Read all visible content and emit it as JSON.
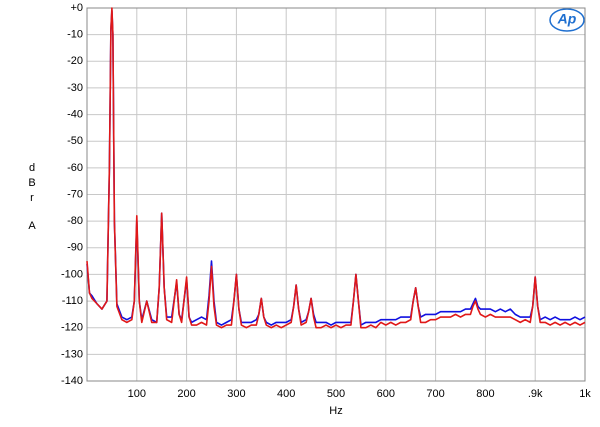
{
  "chart_data": {
    "type": "line",
    "logo": "Ap",
    "xlabel": "Hz",
    "ylabel": [
      "d",
      "B",
      "r",
      "A"
    ],
    "xlim": [
      0,
      1000
    ],
    "ylim": [
      -140,
      0
    ],
    "xticks": [
      100,
      200,
      300,
      400,
      500,
      600,
      700,
      800,
      {
        "value": 900,
        "label": ".9k"
      },
      {
        "value": 1000,
        "label": "1k"
      }
    ],
    "yticks": [
      {
        "value": 0,
        "label": "+0"
      },
      -10,
      -20,
      -30,
      -40,
      -50,
      -60,
      -70,
      -80,
      -90,
      -100,
      -110,
      -120,
      -130,
      -140
    ],
    "grid": true,
    "x": [
      0,
      5,
      10,
      20,
      30,
      40,
      45,
      48,
      50,
      52,
      55,
      60,
      70,
      80,
      90,
      95,
      100,
      105,
      110,
      120,
      130,
      140,
      145,
      150,
      155,
      160,
      170,
      180,
      185,
      190,
      200,
      205,
      210,
      220,
      230,
      240,
      245,
      250,
      255,
      260,
      270,
      280,
      290,
      295,
      300,
      305,
      310,
      320,
      330,
      340,
      345,
      350,
      355,
      360,
      370,
      380,
      390,
      400,
      410,
      415,
      420,
      425,
      430,
      440,
      445,
      450,
      455,
      460,
      470,
      480,
      490,
      500,
      510,
      520,
      530,
      535,
      540,
      545,
      550,
      560,
      570,
      580,
      590,
      600,
      610,
      620,
      630,
      640,
      650,
      655,
      660,
      665,
      670,
      680,
      690,
      700,
      710,
      720,
      730,
      740,
      750,
      760,
      770,
      775,
      780,
      785,
      790,
      800,
      810,
      820,
      830,
      840,
      850,
      860,
      870,
      880,
      890,
      895,
      900,
      905,
      910,
      920,
      930,
      940,
      950,
      960,
      970,
      980,
      990,
      1000
    ],
    "series": [
      {
        "color": "#1010e0",
        "values": [
          -96,
          -107,
          -108,
          -111,
          -113,
          -110,
          -60,
          -8,
          -1,
          -10,
          -80,
          -111,
          -116,
          -117,
          -116,
          -110,
          -80,
          -110,
          -117,
          -110,
          -117,
          -118,
          -105,
          -77,
          -105,
          -116,
          -116,
          -103,
          -115,
          -117,
          -102,
          -116,
          -118,
          -117,
          -116,
          -117,
          -108,
          -95,
          -110,
          -118,
          -119,
          -118,
          -117,
          -110,
          -100,
          -113,
          -118,
          -118,
          -118,
          -117,
          -115,
          -109,
          -116,
          -118,
          -119,
          -118,
          -118,
          -118,
          -117,
          -112,
          -104,
          -113,
          -118,
          -117,
          -114,
          -109,
          -115,
          -118,
          -118,
          -118,
          -119,
          -118,
          -118,
          -118,
          -118,
          -110,
          -100,
          -110,
          -119,
          -118,
          -118,
          -118,
          -117,
          -117,
          -117,
          -117,
          -116,
          -116,
          -116,
          -110,
          -105,
          -112,
          -116,
          -115,
          -115,
          -115,
          -114,
          -114,
          -114,
          -114,
          -114,
          -113,
          -113,
          -111,
          -109,
          -112,
          -113,
          -113,
          -113,
          -114,
          -113,
          -114,
          -113,
          -115,
          -116,
          -116,
          -116,
          -112,
          -101,
          -112,
          -117,
          -116,
          -117,
          -116,
          -117,
          -117,
          -117,
          -116,
          -117,
          -116
        ]
      },
      {
        "color": "#e01818",
        "values": [
          -95,
          -107,
          -109,
          -111,
          -113,
          -110,
          -60,
          -8,
          0,
          -10,
          -80,
          -112,
          -117,
          -118,
          -117,
          -110,
          -78,
          -110,
          -118,
          -110,
          -118,
          -118,
          -105,
          -77,
          -105,
          -117,
          -118,
          -102,
          -115,
          -118,
          -101,
          -116,
          -119,
          -119,
          -118,
          -119,
          -110,
          -97,
          -112,
          -119,
          -120,
          -119,
          -119,
          -110,
          -100,
          -113,
          -119,
          -120,
          -119,
          -119,
          -115,
          -109,
          -116,
          -119,
          -120,
          -119,
          -120,
          -119,
          -118,
          -112,
          -104,
          -113,
          -119,
          -118,
          -114,
          -109,
          -116,
          -120,
          -120,
          -119,
          -120,
          -119,
          -120,
          -119,
          -119,
          -110,
          -100,
          -110,
          -120,
          -120,
          -119,
          -120,
          -118,
          -119,
          -118,
          -119,
          -118,
          -118,
          -117,
          -110,
          -105,
          -112,
          -118,
          -118,
          -117,
          -117,
          -116,
          -116,
          -116,
          -115,
          -116,
          -115,
          -115,
          -112,
          -110,
          -113,
          -115,
          -116,
          -115,
          -116,
          -116,
          -116,
          -116,
          -117,
          -118,
          -117,
          -118,
          -112,
          -101,
          -112,
          -118,
          -118,
          -119,
          -118,
          -119,
          -118,
          -119,
          -118,
          -119,
          -118
        ]
      }
    ]
  }
}
